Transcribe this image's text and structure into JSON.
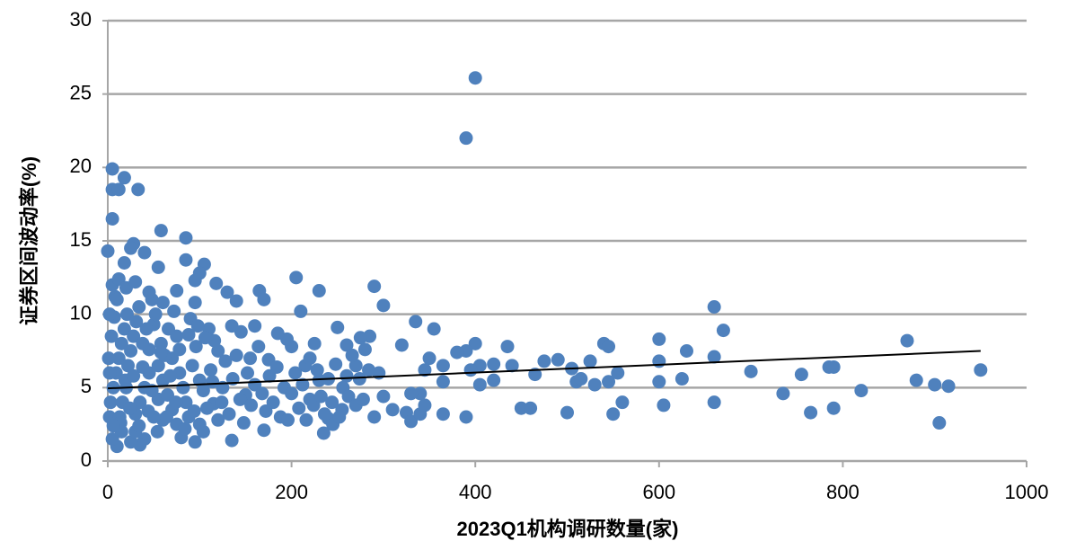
{
  "chart_data": {
    "type": "scatter",
    "x_label": "2023Q1机构调研数量(家)",
    "y_label": "证券区间波动率(%)",
    "color": "#4f81bd",
    "grid": true,
    "xlim": [
      0,
      1000
    ],
    "xticks": [
      0,
      200,
      400,
      600,
      800,
      1000
    ],
    "ylim": [
      0,
      30
    ],
    "yticks": [
      0,
      5,
      10,
      15,
      20,
      25,
      30
    ],
    "x": [
      400,
      390,
      5,
      18,
      5,
      12,
      33,
      5,
      58,
      85,
      0,
      28,
      25,
      40,
      85,
      105,
      18,
      55,
      100,
      95,
      118,
      205,
      230,
      290,
      165,
      130,
      140,
      170,
      210,
      300,
      660,
      670,
      335,
      355,
      250,
      285,
      400,
      435,
      540,
      545,
      600,
      630,
      660,
      600,
      700,
      755,
      785,
      790,
      870,
      950,
      735,
      820,
      880,
      900,
      915,
      905,
      765,
      790,
      660,
      605,
      600,
      625,
      560,
      550,
      545,
      555,
      525,
      505,
      500,
      510,
      515,
      530,
      490,
      475,
      450,
      460,
      465,
      440,
      420,
      420,
      405,
      405,
      395,
      390,
      380,
      390,
      365,
      365,
      365,
      350,
      345,
      340,
      330,
      325,
      330,
      340,
      345,
      320,
      310,
      300,
      295,
      290,
      280,
      275,
      270,
      260,
      260,
      255,
      240,
      235,
      245,
      230,
      225,
      220,
      215,
      200,
      195,
      185,
      175,
      170,
      160,
      155,
      150,
      145,
      135,
      135,
      125,
      120,
      115,
      110,
      100,
      95,
      90,
      80,
      75,
      70,
      60,
      55,
      50,
      45,
      40,
      35,
      30,
      25,
      20,
      15,
      10,
      5,
      2,
      8,
      3,
      6,
      9,
      12,
      15,
      18,
      21,
      4,
      7,
      10,
      13,
      16,
      19,
      22,
      25,
      28,
      31,
      34,
      2,
      1,
      30,
      35,
      40,
      45,
      50,
      55,
      60,
      65,
      70,
      75,
      38,
      42,
      48,
      52,
      58,
      62,
      66,
      72,
      78,
      82,
      85,
      88,
      92,
      96,
      100,
      104,
      108,
      112,
      116,
      120,
      124,
      128,
      132,
      136,
      140,
      144,
      148,
      152,
      156,
      160,
      164,
      168,
      172,
      176,
      180,
      184,
      188,
      192,
      196,
      200,
      204,
      208,
      212,
      216,
      220,
      224,
      228,
      232,
      236,
      240,
      244,
      248,
      252,
      256,
      262,
      266,
      270,
      274,
      278,
      284,
      14,
      24,
      34,
      44,
      54,
      64,
      74,
      84,
      94,
      104,
      28,
      38,
      48,
      58,
      68,
      78,
      88,
      98,
      106,
      114,
      5,
      12,
      20,
      30,
      45,
      60,
      75,
      95,
      2,
      6
    ],
    "values": [
      26.1,
      22,
      19.9,
      19.3,
      18.5,
      18.5,
      18.5,
      16.5,
      15.7,
      15.2,
      14.3,
      14.8,
      14.5,
      14.2,
      13.7,
      13.4,
      13.5,
      13.2,
      12.8,
      12.3,
      12.1,
      12.5,
      11.6,
      11.9,
      11.6,
      11.5,
      10.9,
      11,
      10.2,
      10.6,
      10.5,
      8.9,
      9.5,
      9,
      9.1,
      8.5,
      8,
      7.8,
      8,
      7.8,
      8.3,
      7.5,
      7.1,
      6.8,
      6.1,
      5.9,
      6.4,
      6.4,
      8.2,
      6.2,
      4.6,
      4.8,
      5.5,
      5.2,
      5.1,
      2.6,
      3.3,
      3.6,
      4,
      3.8,
      5.4,
      5.6,
      4,
      3.2,
      5.4,
      6,
      6.8,
      6.3,
      3.3,
      5.4,
      5.6,
      5.2,
      6.9,
      6.8,
      3.6,
      3.6,
      5.9,
      6.5,
      6.6,
      5.5,
      6.5,
      5.2,
      6.2,
      7.5,
      7.4,
      3,
      3.2,
      5.4,
      6.5,
      7,
      6.2,
      4.6,
      4.6,
      3.3,
      2.7,
      3.2,
      3.8,
      7.9,
      3.5,
      4.4,
      6,
      3,
      7.6,
      8.4,
      6.5,
      7.9,
      5.8,
      3.5,
      2.9,
      1.9,
      2.5,
      5.5,
      8,
      4.2,
      6.5,
      7.8,
      8.3,
      8.7,
      6.9,
      2.1,
      9.2,
      7,
      4.5,
      8.8,
      1.4,
      9.2,
      5,
      7.5,
      3.9,
      9,
      2.5,
      1.3,
      9.7,
      1.6,
      8.5,
      7,
      2.8,
      4.2,
      9.3,
      7.6,
      1.5,
      1.1,
      3.2,
      1.3,
      5,
      2,
      1,
      1.5,
      3,
      11.2,
      4,
      5,
      6,
      7,
      8,
      9,
      10,
      8.5,
      9.8,
      11,
      3,
      4,
      5.5,
      6.5,
      7.5,
      8.5,
      9.5,
      10.5,
      6,
      7,
      2,
      4,
      5,
      6,
      3,
      6.5,
      5.5,
      4.5,
      3.5,
      2.5,
      8,
      9,
      11,
      10,
      8,
      7.2,
      9,
      10.2,
      6,
      5,
      4,
      3,
      6.5,
      7.8,
      5.5,
      4.8,
      3.6,
      6.2,
      8.2,
      2.8,
      4,
      6.8,
      3.2,
      5.6,
      7.2,
      4.2,
      2.6,
      6,
      3.8,
      5.2,
      7.8,
      4.6,
      3.4,
      5.8,
      4,
      6.4,
      3,
      5,
      2.8,
      4.6,
      6,
      3.6,
      5.2,
      2.8,
      7,
      3.8,
      6.2,
      4.4,
      3.2,
      5.6,
      4,
      6.6,
      3,
      5,
      4.4,
      7.2,
      3.8,
      5.6,
      4.2,
      6.2,
      2.6,
      3.6,
      2.4,
      3.4,
      2,
      3,
      4,
      2.2,
      3.4,
      2,
      5.8,
      6.4,
      4.8,
      7.4,
      5.8,
      7.6,
      8.6,
      9.2,
      8.4,
      5.4,
      12,
      12.4,
      11.8,
      12.2,
      11.5,
      10.8,
      11.6,
      10.8,
      10,
      2.4
    ],
    "trendline": {
      "x": [
        0,
        950
      ],
      "values": [
        4.95,
        7.5
      ],
      "color": "#000000"
    }
  }
}
